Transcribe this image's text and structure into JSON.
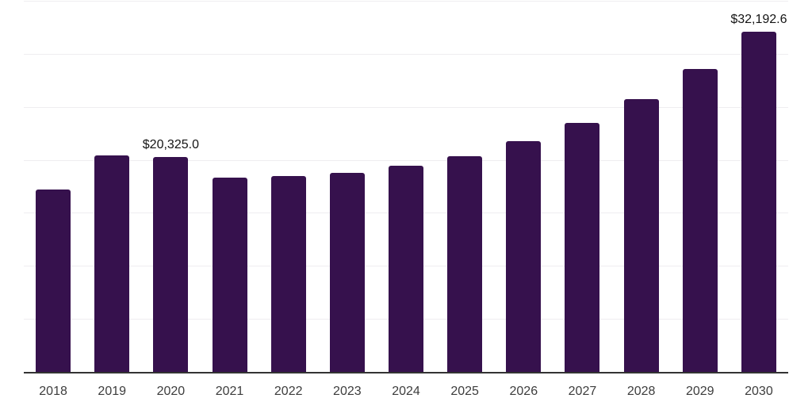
{
  "chart_data": {
    "type": "bar",
    "title": "",
    "xlabel": "",
    "ylabel": "",
    "categories": [
      "2018",
      "2019",
      "2020",
      "2021",
      "2022",
      "2023",
      "2024",
      "2025",
      "2026",
      "2027",
      "2028",
      "2029",
      "2030"
    ],
    "values": [
      17270,
      20480,
      20325.0,
      18390,
      18540,
      18830,
      19550,
      20400,
      21830,
      23570,
      25800,
      28670,
      32192.6
    ],
    "point_labels": [
      "",
      "",
      "$20,325.0",
      "",
      "",
      "",
      "",
      "",
      "",
      "",
      "",
      "",
      "$32,192.6"
    ],
    "ylim": [
      0,
      35000
    ],
    "gridline_step": 5000,
    "grid": "horizontal",
    "legend": "none",
    "y_tick_labels_shown": false,
    "colors": {
      "bar": "#36114d",
      "gridline": "#efedf0",
      "axis_line": "#333333",
      "tick_label": "#3d3d3d",
      "value_label": "#141414",
      "background": "#ffffff"
    }
  }
}
